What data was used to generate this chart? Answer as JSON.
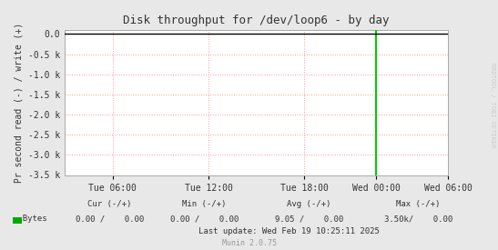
{
  "title": "Disk throughput for /dev/loop6 - by day",
  "ylabel": "Pr second read (-) / write (+)",
  "background_color": "#e8e8e8",
  "plot_bg_color": "#ffffff",
  "grid_color": "#ff9999",
  "x_tick_labels": [
    "Tue 06:00",
    "Tue 12:00",
    "Tue 18:00",
    "Wed 00:00",
    "Wed 06:00"
  ],
  "x_tick_positions": [
    0.125,
    0.375,
    0.625,
    0.8125,
    1.0
  ],
  "ylim": [
    -3500,
    100
  ],
  "yticks": [
    0.0,
    -500,
    -1000,
    -1500,
    -2000,
    -2500,
    -3000,
    -3500
  ],
  "ytick_labels": [
    "0.0",
    "-0.5 k",
    "-1.0 k",
    "-1.5 k",
    "-2.0 k",
    "-2.5 k",
    "-3.0 k",
    "-3.5 k"
  ],
  "line_color": "#00cc00",
  "line_x": 0.8125,
  "top_line_color": "#000000",
  "watermark": "RRDTOOL / TOBI OETIKER",
  "munin_label": "Munin 2.0.75",
  "legend_label": "Bytes",
  "legend_color": "#00aa00",
  "footer_cur_label": "Cur (-/+)",
  "footer_min_label": "Min (-/+)",
  "footer_avg_label": "Avg (-/+)",
  "footer_max_label": "Max (-/+)",
  "footer_cur_val": "0.00 /    0.00",
  "footer_min_val": "0.00 /    0.00",
  "footer_avg_val": "9.05 /    0.00",
  "footer_max_val": "3.50k/    0.00",
  "footer_last_update": "Last update: Wed Feb 19 10:25:11 2025"
}
